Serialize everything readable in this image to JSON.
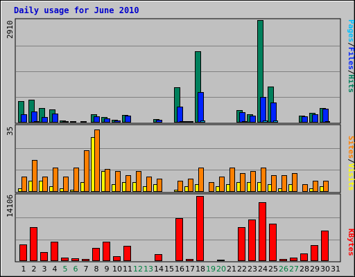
{
  "colors": {
    "outer_bg": "#c4c4c4",
    "plot_bg": "#c0c0c0",
    "title": "#0000cc",
    "grid": "#808080",
    "hits": "#00805c",
    "files": "#0024ff",
    "pages": "#00c0ff",
    "visits": "#ffff00",
    "sites": "#ff8000",
    "kbytes": "#ff0000",
    "weekend_label": "#008040",
    "weekday_label": "#000000"
  },
  "chart_data": [
    {
      "type": "bar",
      "title": "Daily usage for June 2010",
      "categories": [
        "1",
        "2",
        "3",
        "4",
        "5",
        "6",
        "7",
        "8",
        "9",
        "10",
        "11",
        "12",
        "13",
        "14",
        "15",
        "16",
        "17",
        "18",
        "19",
        "20",
        "21",
        "22",
        "23",
        "24",
        "25",
        "26",
        "27",
        "28",
        "29",
        "30",
        "31"
      ],
      "weekend_days": [
        "5",
        "6",
        "12",
        "13",
        "19",
        "20",
        "26",
        "27"
      ],
      "ymax_label": "2910",
      "ylim": [
        0,
        2910
      ],
      "series": [
        {
          "name": "Hits",
          "color": "#00805c",
          "values": [
            600,
            640,
            420,
            380,
            50,
            40,
            40,
            240,
            160,
            80,
            210,
            0,
            0,
            90,
            0,
            1000,
            40,
            2030,
            0,
            0,
            0,
            360,
            240,
            2910,
            1020,
            0,
            0,
            190,
            280,
            420,
            0
          ]
        },
        {
          "name": "Files",
          "color": "#0024ff",
          "values": [
            240,
            320,
            160,
            250,
            30,
            20,
            20,
            180,
            120,
            60,
            200,
            0,
            0,
            80,
            0,
            450,
            30,
            870,
            0,
            0,
            0,
            300,
            200,
            720,
            570,
            0,
            0,
            180,
            230,
            400,
            0
          ]
        },
        {
          "name": "Pages",
          "color": "#00c0ff",
          "values": [
            20,
            30,
            20,
            20,
            10,
            10,
            10,
            20,
            20,
            10,
            20,
            0,
            0,
            10,
            0,
            30,
            10,
            60,
            0,
            0,
            0,
            30,
            20,
            60,
            50,
            0,
            0,
            20,
            20,
            30,
            0
          ]
        }
      ]
    },
    {
      "type": "bar",
      "categories": [
        "1",
        "2",
        "3",
        "4",
        "5",
        "6",
        "7",
        "8",
        "9",
        "10",
        "11",
        "12",
        "13",
        "14",
        "15",
        "16",
        "17",
        "18",
        "19",
        "20",
        "21",
        "22",
        "23",
        "24",
        "25",
        "26",
        "27",
        "28",
        "29",
        "30",
        "31"
      ],
      "ymax_label": "35",
      "ylim": [
        0,
        35
      ],
      "series": [
        {
          "name": "Visits",
          "color": "#ffff00",
          "values": [
            2,
            6,
            6,
            3,
            2,
            1,
            5,
            29,
            11,
            4,
            5,
            5,
            3,
            4,
            0,
            1,
            3,
            4,
            0,
            3,
            4,
            5,
            5,
            5,
            4,
            2,
            4,
            0,
            2,
            3,
            0
          ]
        },
        {
          "name": "Sites",
          "color": "#ff8000",
          "values": [
            8,
            17,
            8,
            13,
            8,
            13,
            22,
            33,
            12,
            11,
            9,
            11,
            8,
            7,
            0,
            6,
            7,
            13,
            5,
            8,
            13,
            10,
            11,
            13,
            9,
            9,
            10,
            4,
            6,
            6,
            0
          ]
        }
      ]
    },
    {
      "type": "bar",
      "categories": [
        "1",
        "2",
        "3",
        "4",
        "5",
        "6",
        "7",
        "8",
        "9",
        "10",
        "11",
        "12",
        "13",
        "14",
        "15",
        "16",
        "17",
        "18",
        "19",
        "20",
        "21",
        "22",
        "23",
        "24",
        "25",
        "26",
        "27",
        "28",
        "29",
        "30",
        "31"
      ],
      "ymax_label": "14106",
      "ylim": [
        0,
        14106
      ],
      "series": [
        {
          "name": "KBytes",
          "color": "#ff0000",
          "values": [
            3600,
            7400,
            1900,
            4200,
            700,
            600,
            500,
            2900,
            4200,
            1100,
            3300,
            0,
            0,
            1500,
            0,
            9300,
            500,
            14106,
            200,
            300,
            0,
            7400,
            9000,
            12800,
            8100,
            500,
            700,
            1600,
            3500,
            6600,
            0
          ]
        }
      ]
    }
  ],
  "legends": {
    "top": [
      {
        "text": "Pages",
        "color": "#00c0ff"
      },
      {
        "text": "/",
        "color": "#000000"
      },
      {
        "text": "Files",
        "color": "#0024ff"
      },
      {
        "text": "/",
        "color": "#000000"
      },
      {
        "text": "Hits",
        "color": "#00805c"
      }
    ],
    "middle": [
      {
        "text": "Sites",
        "color": "#ff8000"
      },
      {
        "text": "/",
        "color": "#000000"
      },
      {
        "text": "Visits",
        "color": "#ffff00"
      }
    ],
    "bottom": [
      {
        "text": "KBytes",
        "color": "#ff0000"
      }
    ]
  }
}
